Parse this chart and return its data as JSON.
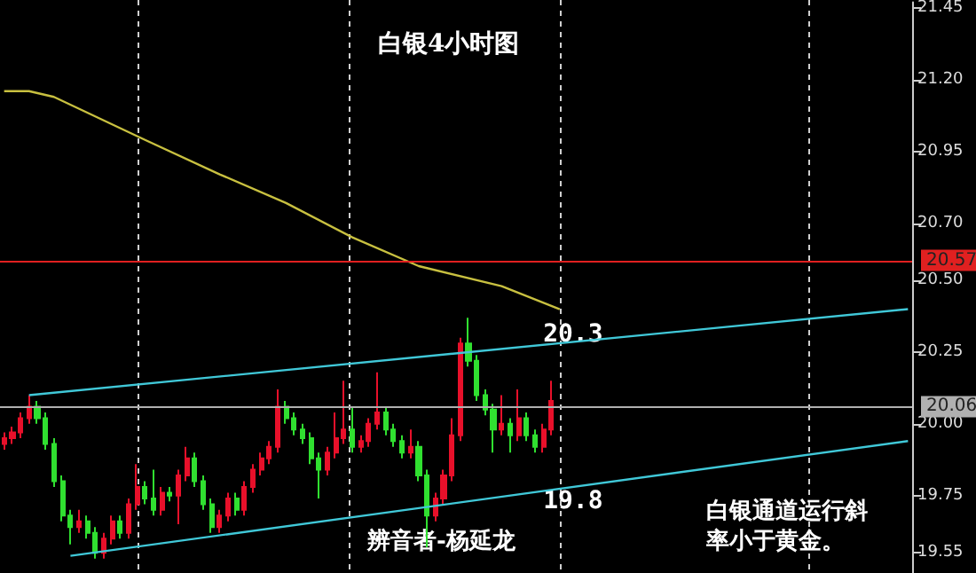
{
  "chart_data": {
    "type": "candlestick",
    "title": "白银4小时图",
    "categories": [
      null,
      null,
      null,
      null,
      null,
      null,
      null,
      null,
      null,
      null,
      null,
      null,
      null,
      null,
      null,
      null,
      null,
      null,
      null,
      null,
      null,
      null,
      null,
      null,
      null,
      null,
      null,
      null,
      null,
      null,
      null,
      null,
      null,
      null,
      null,
      null,
      null,
      null,
      null,
      null,
      null,
      null,
      null,
      null,
      null,
      null,
      null,
      null,
      null,
      null,
      null,
      null,
      null,
      null,
      null,
      null,
      null,
      null,
      null,
      null,
      null,
      null,
      null,
      null,
      null,
      null,
      null,
      null,
      null,
      null,
      null,
      null,
      null,
      null,
      null,
      null,
      null,
      null,
      null,
      null,
      null,
      null,
      null,
      null,
      null,
      null,
      null,
      null,
      null,
      null,
      null,
      null,
      null,
      null,
      null,
      null,
      null,
      null,
      null,
      null,
      null,
      null,
      null,
      null,
      null,
      null,
      null,
      null,
      null,
      null
    ],
    "ohlc": [
      [
        19.93,
        19.97,
        19.91,
        19.95
      ],
      [
        19.95,
        19.99,
        19.93,
        19.97
      ],
      [
        19.97,
        20.04,
        19.95,
        20.02
      ],
      [
        20.02,
        20.1,
        20.0,
        20.06
      ],
      [
        20.06,
        20.08,
        20.0,
        20.02
      ],
      [
        20.02,
        20.04,
        19.91,
        19.93
      ],
      [
        19.93,
        19.95,
        19.78,
        19.8
      ],
      [
        19.8,
        19.82,
        19.66,
        19.68
      ],
      [
        19.68,
        19.7,
        19.58,
        19.64
      ],
      [
        19.64,
        19.7,
        19.62,
        19.66
      ],
      [
        19.66,
        19.68,
        19.6,
        19.62
      ],
      [
        19.62,
        19.64,
        19.53,
        19.55
      ],
      [
        19.55,
        19.62,
        19.53,
        19.6
      ],
      [
        19.6,
        19.68,
        19.58,
        19.66
      ],
      [
        19.66,
        19.68,
        19.6,
        19.62
      ],
      [
        19.62,
        19.74,
        19.6,
        19.72
      ],
      [
        19.72,
        19.86,
        19.7,
        19.78
      ],
      [
        19.78,
        19.8,
        19.72,
        19.74
      ],
      [
        19.74,
        19.84,
        19.68,
        19.7
      ],
      [
        19.7,
        19.78,
        19.68,
        19.76
      ],
      [
        19.76,
        19.78,
        19.73,
        19.75
      ],
      [
        19.75,
        19.84,
        19.65,
        19.82
      ],
      [
        19.82,
        19.92,
        19.8,
        19.88
      ],
      [
        19.88,
        19.9,
        19.78,
        19.8
      ],
      [
        19.8,
        19.82,
        19.7,
        19.72
      ],
      [
        19.72,
        19.74,
        19.62,
        19.64
      ],
      [
        19.64,
        19.7,
        19.62,
        19.68
      ],
      [
        19.68,
        19.76,
        19.66,
        19.74
      ],
      [
        19.74,
        19.76,
        19.68,
        19.7
      ],
      [
        19.7,
        19.8,
        19.68,
        19.78
      ],
      [
        19.78,
        19.86,
        19.76,
        19.84
      ],
      [
        19.84,
        19.9,
        19.82,
        19.88
      ],
      [
        19.88,
        19.94,
        19.86,
        19.92
      ],
      [
        19.92,
        20.12,
        19.9,
        20.06
      ],
      [
        20.06,
        20.08,
        20.0,
        20.02
      ],
      [
        20.02,
        20.04,
        19.96,
        19.98
      ],
      [
        19.98,
        20.0,
        19.93,
        19.95
      ],
      [
        19.95,
        19.97,
        19.86,
        19.88
      ],
      [
        19.88,
        19.9,
        19.74,
        19.84
      ],
      [
        19.84,
        19.92,
        19.82,
        19.9
      ],
      [
        19.9,
        20.04,
        19.88,
        19.95
      ],
      [
        19.95,
        20.15,
        19.93,
        19.98
      ],
      [
        19.98,
        20.06,
        19.9,
        19.92
      ],
      [
        19.92,
        19.96,
        19.9,
        19.94
      ],
      [
        19.94,
        20.02,
        19.92,
        20.0
      ],
      [
        20.0,
        20.18,
        19.98,
        20.04
      ],
      [
        20.04,
        20.06,
        19.96,
        19.98
      ],
      [
        19.98,
        20.0,
        19.92,
        19.94
      ],
      [
        19.94,
        19.96,
        19.88,
        19.9
      ],
      [
        19.9,
        19.98,
        19.88,
        19.92
      ],
      [
        19.92,
        19.94,
        19.8,
        19.82
      ],
      [
        19.82,
        19.84,
        19.57,
        19.68
      ],
      [
        19.68,
        19.76,
        19.66,
        19.74
      ],
      [
        19.74,
        19.84,
        19.72,
        19.82
      ],
      [
        19.82,
        20.02,
        19.8,
        19.96
      ],
      [
        19.96,
        20.3,
        19.94,
        20.28
      ],
      [
        20.28,
        20.37,
        20.2,
        20.22
      ],
      [
        20.22,
        20.24,
        20.08,
        20.1
      ],
      [
        20.1,
        20.12,
        20.03,
        20.05
      ],
      [
        20.05,
        20.07,
        19.9,
        19.98
      ],
      [
        19.98,
        20.1,
        19.96,
        20.0
      ],
      [
        20.0,
        20.02,
        19.9,
        19.96
      ],
      [
        19.96,
        20.12,
        19.94,
        20.02
      ],
      [
        20.02,
        20.04,
        19.94,
        19.96
      ],
      [
        19.96,
        19.98,
        19.9,
        19.92
      ],
      [
        19.92,
        20.0,
        19.9,
        19.98
      ],
      [
        19.98,
        20.15,
        19.96,
        20.08
      ],
      null,
      null,
      null,
      null,
      null,
      null,
      null,
      null,
      null,
      null,
      null,
      null,
      null,
      null,
      null,
      null,
      null,
      null,
      null,
      null,
      null,
      null,
      null,
      null,
      null,
      null,
      null,
      null,
      null,
      null,
      null,
      null,
      null,
      null,
      null,
      null,
      null,
      null,
      null,
      null,
      null,
      null,
      null
    ],
    "colors": [
      "#e8102a",
      "#e8102a",
      "#e8102a",
      "#e8102a",
      "#30e030",
      "#30e030",
      "#30e030",
      "#30e030",
      "#30e030",
      "#e8102a",
      "#30e030",
      "#30e030",
      "#e8102a",
      "#e8102a",
      "#30e030",
      "#e8102a",
      "#e8102a",
      "#30e030",
      "#30e030",
      "#e8102a",
      "#30e030",
      "#e8102a",
      "#e8102a",
      "#30e030",
      "#30e030",
      "#30e030",
      "#e8102a",
      "#e8102a",
      "#30e030",
      "#e8102a",
      "#e8102a",
      "#e8102a",
      "#e8102a",
      "#e8102a",
      "#30e030",
      "#30e030",
      "#30e030",
      "#30e030",
      "#30e030",
      "#e8102a",
      "#e8102a",
      "#e8102a",
      "#30e030",
      "#e8102a",
      "#e8102a",
      "#e8102a",
      "#30e030",
      "#30e030",
      "#30e030",
      "#e8102a",
      "#30e030",
      "#30e030",
      "#e8102a",
      "#e8102a",
      "#e8102a",
      "#e8102a",
      "#30e030",
      "#30e030",
      "#30e030",
      "#30e030",
      "#e8102a",
      "#30e030",
      "#e8102a",
      "#30e030",
      "#30e030",
      "#e8102a",
      "#e8102a",
      null,
      null,
      null,
      null,
      null,
      null,
      null,
      null,
      null,
      null,
      null,
      null,
      null,
      null,
      null,
      null,
      null,
      null,
      null,
      null,
      null,
      null,
      null,
      null,
      null,
      null,
      null,
      null,
      null,
      null,
      null,
      null,
      null,
      null,
      null,
      null,
      null,
      null,
      null,
      null,
      null,
      null,
      null
    ],
    "series": [
      {
        "type": "line",
        "color": "#c8c040",
        "values": [
          21.16,
          null,
          null,
          21.16,
          null,
          null,
          21.14,
          null,
          null,
          null,
          null,
          null,
          null,
          null,
          null,
          null,
          null,
          20.99,
          null,
          null,
          null,
          null,
          null,
          null,
          null,
          null,
          20.87,
          null,
          null,
          null,
          null,
          null,
          null,
          null,
          20.77,
          null,
          null,
          null,
          null,
          null,
          null,
          null,
          20.65,
          null,
          null,
          null,
          null,
          null,
          null,
          null,
          20.55,
          null,
          null,
          null,
          null,
          null,
          null,
          null,
          null,
          null,
          20.48,
          null,
          null,
          null,
          null,
          null,
          null,
          20.4,
          null,
          null,
          null,
          null,
          null,
          null,
          null,
          null,
          null,
          null,
          null,
          null,
          null,
          null,
          null,
          null,
          null,
          null,
          null,
          null,
          null,
          null,
          null,
          null,
          null,
          null,
          null,
          null,
          null,
          null,
          null,
          null,
          null,
          null,
          null,
          null,
          null,
          null,
          null,
          null,
          null,
          null
        ]
      },
      {
        "type": "line",
        "color": "#40c8d8",
        "values": [
          null,
          null,
          null,
          20.1,
          null,
          null,
          null,
          null,
          null,
          null,
          null,
          null,
          null,
          null,
          null,
          null,
          null,
          null,
          null,
          null,
          null,
          null,
          null,
          null,
          null,
          null,
          null,
          null,
          null,
          null,
          null,
          null,
          null,
          null,
          null,
          null,
          null,
          null,
          null,
          null,
          null,
          null,
          null,
          null,
          null,
          null,
          null,
          null,
          null,
          null,
          null,
          null,
          null,
          null,
          null,
          null,
          null,
          null,
          null,
          null,
          null,
          null,
          null,
          null,
          null,
          null,
          null,
          null,
          null,
          null,
          null,
          null,
          null,
          null,
          null,
          null,
          null,
          null,
          null,
          null,
          null,
          null,
          null,
          null,
          null,
          null,
          null,
          null,
          null,
          null,
          null,
          null,
          null,
          null,
          null,
          null,
          null,
          null,
          null,
          null,
          null,
          null,
          null,
          null,
          null,
          null,
          null,
          null,
          null,
          20.4
        ]
      },
      {
        "type": "line",
        "color": "#40c8d8",
        "values": [
          null,
          null,
          null,
          null,
          null,
          null,
          null,
          null,
          19.54,
          null,
          null,
          null,
          null,
          null,
          null,
          null,
          null,
          null,
          null,
          null,
          null,
          null,
          null,
          null,
          null,
          null,
          null,
          null,
          null,
          null,
          null,
          null,
          null,
          null,
          null,
          null,
          null,
          null,
          null,
          null,
          null,
          null,
          null,
          null,
          null,
          null,
          null,
          null,
          null,
          null,
          null,
          null,
          null,
          null,
          null,
          null,
          null,
          null,
          null,
          null,
          null,
          null,
          null,
          null,
          null,
          null,
          null,
          null,
          null,
          null,
          null,
          null,
          null,
          null,
          null,
          null,
          null,
          null,
          null,
          null,
          null,
          null,
          null,
          null,
          null,
          null,
          null,
          null,
          null,
          null,
          null,
          null,
          null,
          null,
          null,
          null,
          null,
          null,
          null,
          null,
          null,
          null,
          null,
          null,
          null,
          null,
          null,
          null,
          null,
          19.94
        ]
      }
    ],
    "ylim": [
      19.48,
      21.47
    ],
    "yticks": [
      19.55,
      19.75,
      {
        "value": 20,
        "label": "20.00"
      },
      20.25,
      {
        "value": 20.5,
        "label": "20.50"
      },
      {
        "value": 20.7,
        "label": "20.70"
      },
      20.95,
      {
        "value": 21.2,
        "label": "21.20"
      },
      21.45
    ],
    "tick_labels": "y",
    "grid": false,
    "ref_lines": [
      {
        "axis": "y",
        "value": 20.57,
        "label": "20.57",
        "color": "#e02020"
      },
      {
        "axis": "y",
        "value": 20.06,
        "label": "20.06",
        "color": "#b0b0b0"
      }
    ],
    "annotations": [
      {
        "text": "20.3",
        "y": 20.3
      },
      {
        "text": "19.8",
        "y": 19.8
      },
      "辨音者-杨延龙",
      "白银通道运行斜率小于黄金。"
    ]
  }
}
